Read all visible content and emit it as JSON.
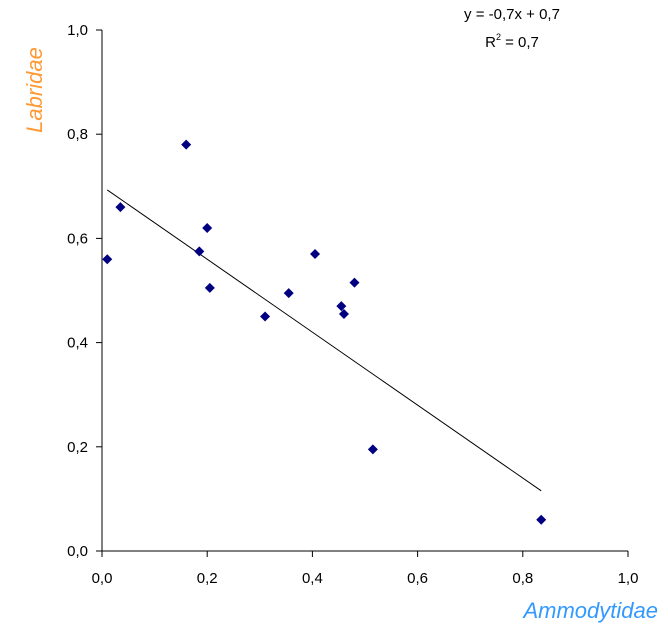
{
  "chart_data": {
    "type": "scatter",
    "title": "",
    "xlabel": "Ammodytidae",
    "ylabel": "Labridae",
    "xlim": [
      0.0,
      1.0
    ],
    "ylim": [
      0.0,
      1.0
    ],
    "x_ticks": [
      "0,0",
      "0,2",
      "0,4",
      "0,6",
      "0,8",
      "1,0"
    ],
    "y_ticks": [
      "0,0",
      "0,2",
      "0,4",
      "0,6",
      "0,8",
      "1,0"
    ],
    "grid": false,
    "legend": "none",
    "series": [
      {
        "points": [
          {
            "x": 0.01,
            "y": 0.56
          },
          {
            "x": 0.035,
            "y": 0.66
          },
          {
            "x": 0.16,
            "y": 0.78
          },
          {
            "x": 0.185,
            "y": 0.575
          },
          {
            "x": 0.2,
            "y": 0.62
          },
          {
            "x": 0.205,
            "y": 0.505
          },
          {
            "x": 0.31,
            "y": 0.45
          },
          {
            "x": 0.355,
            "y": 0.495
          },
          {
            "x": 0.405,
            "y": 0.57
          },
          {
            "x": 0.455,
            "y": 0.47
          },
          {
            "x": 0.46,
            "y": 0.455
          },
          {
            "x": 0.48,
            "y": 0.515
          },
          {
            "x": 0.515,
            "y": 0.195
          },
          {
            "x": 0.835,
            "y": 0.06
          }
        ]
      }
    ],
    "trendline": {
      "slope": -0.7,
      "intercept": 0.7,
      "x_range": [
        0.01,
        0.835
      ],
      "equation_label": "y = -0,7x + 0,7",
      "r2_prefix": "R",
      "r2_exponent": "2",
      "r2_suffix": " = 0,7"
    },
    "colors": {
      "marker": "#000080",
      "trendline": "#000000",
      "axis": "#000000",
      "xlabel": "#3399FF",
      "ylabel": "#FF9933"
    }
  }
}
